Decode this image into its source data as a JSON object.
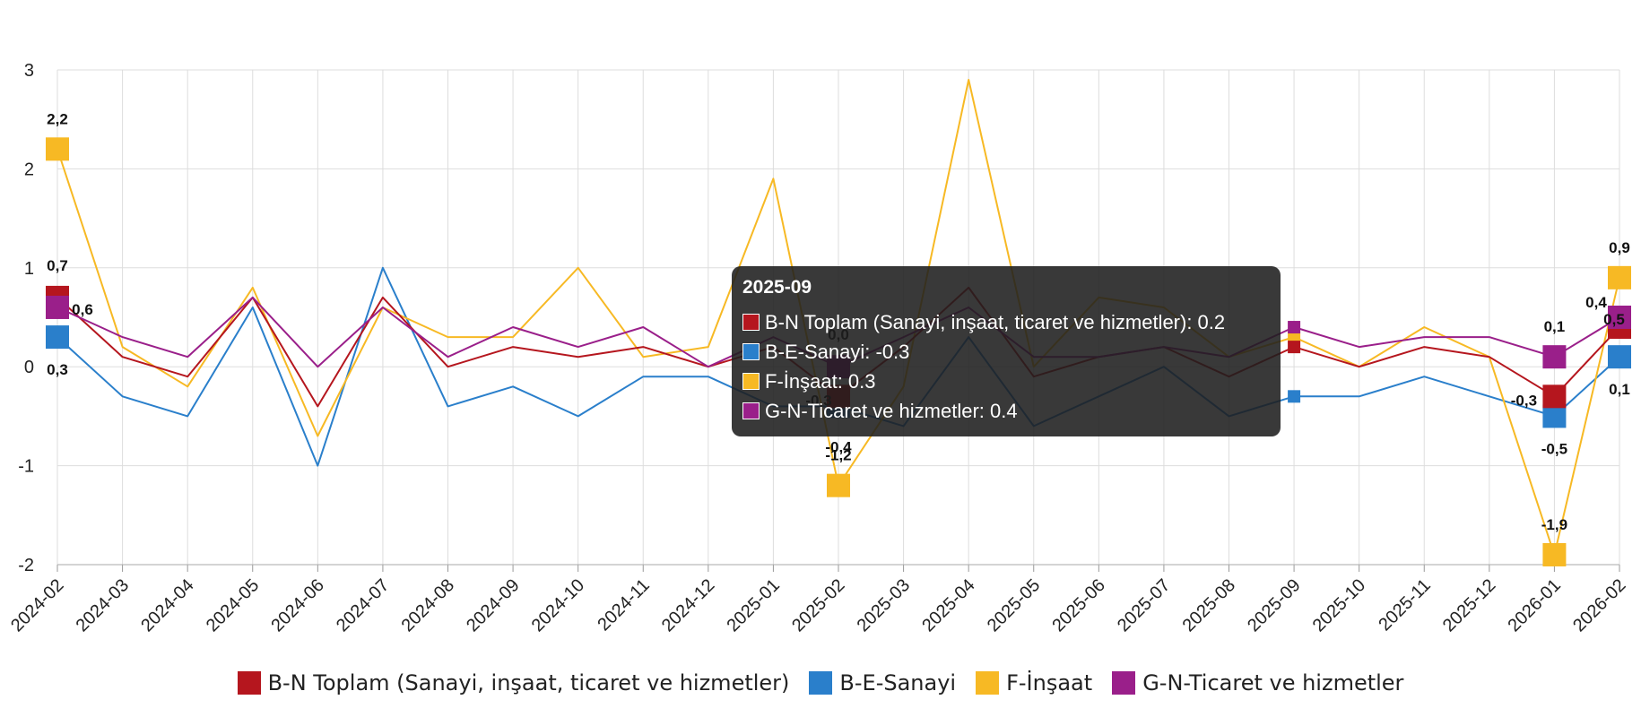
{
  "chart_data": {
    "type": "line",
    "title": "",
    "xlabel": "",
    "ylabel": "",
    "ylim": [
      -2,
      3
    ],
    "yticks": [
      "3",
      "2",
      "1",
      "0",
      "-1",
      "-2"
    ],
    "grid": true,
    "legend_position": "bottom",
    "categories": [
      "2024-02",
      "2024-03",
      "2024-04",
      "2024-05",
      "2024-06",
      "2024-07",
      "2024-08",
      "2024-09",
      "2024-10",
      "2024-11",
      "2024-12",
      "2025-01",
      "2025-02",
      "2025-03",
      "2025-04",
      "2025-05",
      "2025-06",
      "2025-07",
      "2025-08",
      "2025-09",
      "2025-10",
      "2025-11",
      "2025-12",
      "2026-01",
      "2026-02"
    ],
    "series": [
      {
        "name": "B-N Toplam (Sanayi, inşaat, ticaret ve hizmetler)",
        "color": "#b5161e",
        "values": [
          0.7,
          0.1,
          -0.1,
          0.7,
          -0.4,
          0.7,
          0.0,
          0.2,
          0.1,
          0.2,
          0.0,
          0.2,
          -0.3,
          0.2,
          0.8,
          -0.1,
          0.1,
          0.2,
          -0.1,
          0.2,
          0.0,
          0.2,
          0.1,
          -0.3,
          0.4
        ]
      },
      {
        "name": "B-E-Sanayi",
        "color": "#2a7fcb",
        "values": [
          0.3,
          -0.3,
          -0.5,
          0.6,
          -1.0,
          1.0,
          -0.4,
          -0.2,
          -0.5,
          -0.1,
          -0.1,
          -0.4,
          -0.4,
          -0.6,
          0.3,
          -0.6,
          -0.3,
          0.0,
          -0.5,
          -0.3,
          -0.3,
          -0.1,
          -0.3,
          -0.5,
          0.1
        ]
      },
      {
        "name": "F-İnşaat",
        "color": "#f7b924",
        "values": [
          2.2,
          0.2,
          -0.2,
          0.8,
          -0.7,
          0.6,
          0.3,
          0.3,
          1.0,
          0.1,
          0.2,
          1.9,
          -1.2,
          -0.2,
          2.9,
          0.0,
          0.7,
          0.6,
          0.1,
          0.3,
          0.0,
          0.4,
          0.1,
          -1.9,
          0.9
        ]
      },
      {
        "name": "G-N-Ticaret ve hizmetler",
        "color": "#9a1f8a",
        "values": [
          0.6,
          0.3,
          0.1,
          0.7,
          0.0,
          0.6,
          0.1,
          0.4,
          0.2,
          0.4,
          0.0,
          0.3,
          0.0,
          0.3,
          0.6,
          0.1,
          0.1,
          0.2,
          0.1,
          0.4,
          0.2,
          0.3,
          0.3,
          0.1,
          0.5
        ]
      }
    ],
    "data_labels": [
      {
        "text": "2,2",
        "cat": 0,
        "series": 2
      },
      {
        "text": "0,7",
        "cat": 0,
        "series": 0
      },
      {
        "text": "0,6",
        "cat": 0,
        "series": 3
      },
      {
        "text": "0,3",
        "cat": 0,
        "series": 1
      },
      {
        "text": "0,0",
        "cat": 12,
        "series": 3
      },
      {
        "text": "-0,3",
        "cat": 12,
        "series": 0
      },
      {
        "text": "-0,4",
        "cat": 12,
        "series": 1
      },
      {
        "text": "-1,2",
        "cat": 12,
        "series": 2
      },
      {
        "text": "0,1",
        "cat": 23,
        "series": 3
      },
      {
        "text": "-0,3",
        "cat": 23,
        "series": 0
      },
      {
        "text": "-0,5",
        "cat": 23,
        "series": 1
      },
      {
        "text": "-1,9",
        "cat": 23,
        "series": 2
      },
      {
        "text": "0,9",
        "cat": 24,
        "series": 2
      },
      {
        "text": "0,4",
        "cat": 24,
        "series": 0
      },
      {
        "text": "0,5",
        "cat": 24,
        "series": 3
      },
      {
        "text": "0,1",
        "cat": 24,
        "series": 1
      }
    ],
    "big_markers": [
      0,
      12,
      23,
      24
    ],
    "small_markers": [
      19
    ]
  },
  "tooltip": {
    "title": "2025-09",
    "rows": [
      {
        "text": "B-N Toplam (Sanayi, inşaat, ticaret ve hizmetler): 0.2",
        "color": "#b5161e"
      },
      {
        "text": "B-E-Sanayi: -0.3",
        "color": "#2a7fcb"
      },
      {
        "text": "F-İnşaat: 0.3",
        "color": "#f7b924"
      },
      {
        "text": "G-N-Ticaret ve hizmetler: 0.4",
        "color": "#9a1f8a"
      }
    ]
  },
  "legend": [
    {
      "label": "B-N Toplam (Sanayi, inşaat, ticaret ve hizmetler)",
      "color": "#b5161e"
    },
    {
      "label": "B-E-Sanayi",
      "color": "#2a7fcb"
    },
    {
      "label": "F-İnşaat",
      "color": "#f7b924"
    },
    {
      "label": "G-N-Ticaret ve hizmetler",
      "color": "#9a1f8a"
    }
  ]
}
